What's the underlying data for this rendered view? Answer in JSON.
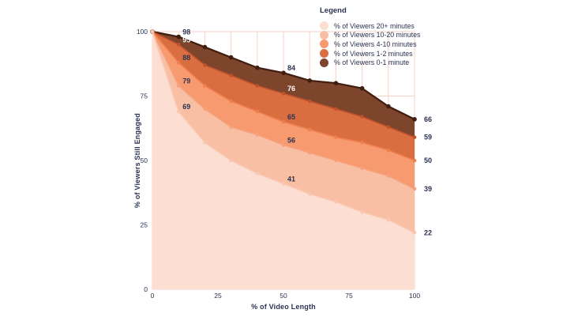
{
  "colors": {
    "text": "#2b3252",
    "grid": "#f9d2c5",
    "background": "#ffffff"
  },
  "legend": {
    "title": "Legend",
    "items": [
      {
        "label": "% of Viewers 20+ minutes",
        "color": "#fcded2"
      },
      {
        "label": "% of Viewers 10-20 minutes",
        "color": "#f9bfa4"
      },
      {
        "label": "% of Viewers 4-10 minutes",
        "color": "#f79a6f"
      },
      {
        "label": "% of Viewers 1-2 minutes",
        "color": "#d96e41"
      },
      {
        "label": "% of Viewers 0-1 minute",
        "color": "#7d452c"
      }
    ]
  },
  "chart_data": {
    "type": "area",
    "title": "",
    "xlabel": "% of Video Length",
    "ylabel": "% of Viewers Still Engaged",
    "x": [
      0,
      10,
      20,
      30,
      40,
      50,
      60,
      70,
      80,
      90,
      100
    ],
    "xlim": [
      0,
      100
    ],
    "ylim": [
      0,
      100
    ],
    "x_ticks": [
      0,
      25,
      50,
      75,
      100
    ],
    "y_ticks": [
      0,
      25,
      50,
      75,
      100
    ],
    "grid": {
      "vertical_every": 10,
      "horizontal_every": 25,
      "shown": true
    },
    "legend_position": "top-right",
    "series": [
      {
        "name": "% of Viewers 0-1 minute",
        "fill": "#7d452c",
        "line": "#3f1d0f",
        "values": [
          100,
          98,
          94,
          90,
          86,
          84,
          81,
          80,
          78,
          71,
          66
        ],
        "labels": [
          {
            "x": 10,
            "value": 98
          },
          {
            "x": 50,
            "value": 84
          },
          {
            "x": 100,
            "value": 66
          }
        ]
      },
      {
        "name": "% of Viewers 1-2 minutes",
        "fill": "#d96e41",
        "line": "#c0522b",
        "values": [
          100,
          95,
          87,
          83,
          79,
          76,
          73,
          70,
          67,
          63,
          59
        ],
        "labels": [
          {
            "x": 10,
            "value": 95,
            "color": "#ffffff"
          },
          {
            "x": 50,
            "value": 76,
            "color": "#ffffff"
          },
          {
            "x": 100,
            "value": 59
          }
        ]
      },
      {
        "name": "% of Viewers 4-10 minutes",
        "fill": "#f79a6f",
        "line": "#ee7f4f",
        "values": [
          100,
          88,
          79,
          73,
          69,
          65,
          62,
          59,
          57,
          54,
          50
        ],
        "labels": [
          {
            "x": 10,
            "value": 88
          },
          {
            "x": 50,
            "value": 65
          },
          {
            "x": 100,
            "value": 50
          }
        ]
      },
      {
        "name": "% of Viewers 10-20 minutes",
        "fill": "#f9bfa4",
        "line": "#f5a17b",
        "values": [
          100,
          79,
          70,
          63,
          60,
          56,
          53,
          50,
          47,
          44,
          39
        ],
        "labels": [
          {
            "x": 10,
            "value": 79
          },
          {
            "x": 50,
            "value": 56
          },
          {
            "x": 100,
            "value": 39
          }
        ]
      },
      {
        "name": "% of Viewers 20+ minutes",
        "fill": "#fcded2",
        "line": "#f9c7b1",
        "values": [
          100,
          69,
          57,
          50,
          45,
          41,
          37,
          34,
          30,
          27,
          22
        ],
        "labels": [
          {
            "x": 10,
            "value": 69
          },
          {
            "x": 50,
            "value": 41
          },
          {
            "x": 100,
            "value": 22
          }
        ]
      }
    ]
  }
}
